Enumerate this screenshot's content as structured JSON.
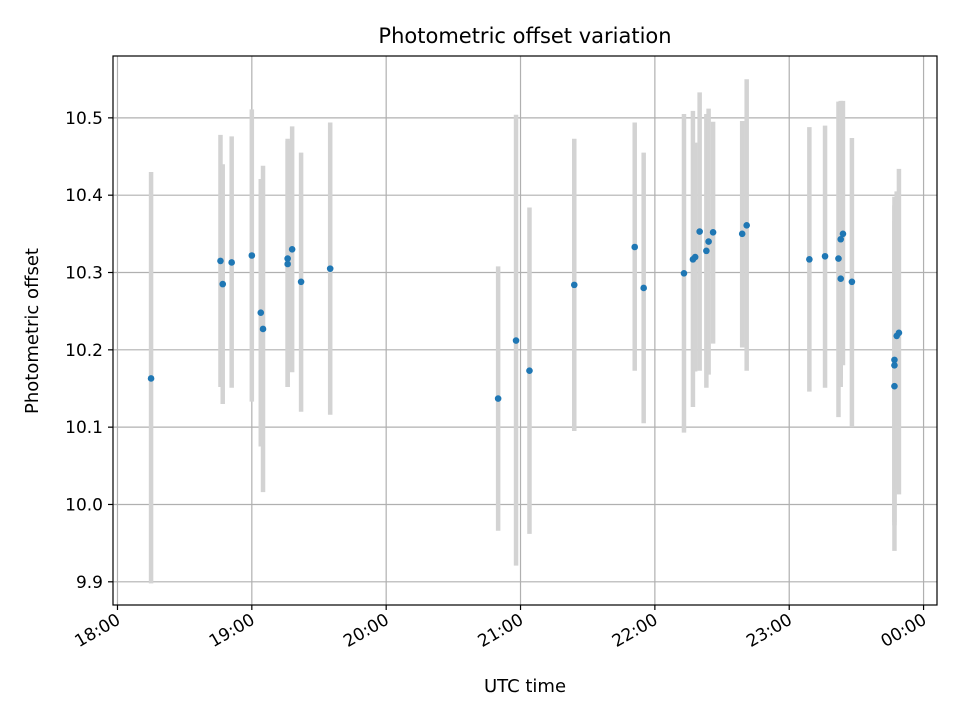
{
  "chart_data": {
    "type": "scatter",
    "title": "Photometric offset variation",
    "xlabel": "UTC time",
    "ylabel": "Photometric offset",
    "xlim": [
      "17:58",
      "00:06"
    ],
    "ylim": [
      9.87,
      10.58
    ],
    "x_ticks": [
      "18:00",
      "19:00",
      "20:00",
      "21:00",
      "22:00",
      "23:00",
      "00:00"
    ],
    "y_ticks": [
      9.9,
      10.0,
      10.1,
      10.2,
      10.3,
      10.4,
      10.5
    ],
    "grid": true,
    "marker_color": "#1f77b4",
    "errorbar_color": "#d3d3d3",
    "points": [
      {
        "t": "18:15",
        "y": 10.163,
        "lo": 9.898,
        "hi": 10.43
      },
      {
        "t": "18:46",
        "y": 10.315,
        "lo": 10.152,
        "hi": 10.478
      },
      {
        "t": "18:47",
        "y": 10.285,
        "lo": 10.13,
        "hi": 10.44
      },
      {
        "t": "18:51",
        "y": 10.313,
        "lo": 10.151,
        "hi": 10.476
      },
      {
        "t": "19:00",
        "y": 10.322,
        "lo": 10.133,
        "hi": 10.511
      },
      {
        "t": "19:04",
        "y": 10.248,
        "lo": 10.075,
        "hi": 10.421
      },
      {
        "t": "19:05",
        "y": 10.227,
        "lo": 10.016,
        "hi": 10.438
      },
      {
        "t": "19:16",
        "y": 10.318,
        "lo": 10.152,
        "hi": 10.473
      },
      {
        "t": "19:16",
        "y": 10.311,
        "lo": 10.152,
        "hi": 10.47
      },
      {
        "t": "19:18",
        "y": 10.33,
        "lo": 10.171,
        "hi": 10.489
      },
      {
        "t": "19:22",
        "y": 10.288,
        "lo": 10.12,
        "hi": 10.455
      },
      {
        "t": "19:35",
        "y": 10.305,
        "lo": 10.116,
        "hi": 10.494
      },
      {
        "t": "20:50",
        "y": 10.137,
        "lo": 9.966,
        "hi": 10.308
      },
      {
        "t": "20:58",
        "y": 10.212,
        "lo": 9.921,
        "hi": 10.504
      },
      {
        "t": "21:04",
        "y": 10.173,
        "lo": 9.962,
        "hi": 10.384
      },
      {
        "t": "21:24",
        "y": 10.284,
        "lo": 10.095,
        "hi": 10.473
      },
      {
        "t": "21:51",
        "y": 10.333,
        "lo": 10.173,
        "hi": 10.494
      },
      {
        "t": "21:55",
        "y": 10.28,
        "lo": 10.105,
        "hi": 10.455
      },
      {
        "t": "22:13",
        "y": 10.299,
        "lo": 10.093,
        "hi": 10.505
      },
      {
        "t": "22:17",
        "y": 10.317,
        "lo": 10.126,
        "hi": 10.509
      },
      {
        "t": "22:18",
        "y": 10.32,
        "lo": 10.172,
        "hi": 10.468
      },
      {
        "t": "22:20",
        "y": 10.353,
        "lo": 10.173,
        "hi": 10.533
      },
      {
        "t": "22:23",
        "y": 10.328,
        "lo": 10.151,
        "hi": 10.505
      },
      {
        "t": "22:24",
        "y": 10.34,
        "lo": 10.168,
        "hi": 10.512
      },
      {
        "t": "22:26",
        "y": 10.352,
        "lo": 10.208,
        "hi": 10.495
      },
      {
        "t": "22:39",
        "y": 10.35,
        "lo": 10.203,
        "hi": 10.496
      },
      {
        "t": "22:41",
        "y": 10.361,
        "lo": 10.173,
        "hi": 10.55
      },
      {
        "t": "23:09",
        "y": 10.317,
        "lo": 10.146,
        "hi": 10.488
      },
      {
        "t": "23:16",
        "y": 10.321,
        "lo": 10.151,
        "hi": 10.49
      },
      {
        "t": "23:22",
        "y": 10.318,
        "lo": 10.113,
        "hi": 10.521
      },
      {
        "t": "23:23",
        "y": 10.343,
        "lo": 10.163,
        "hi": 10.522
      },
      {
        "t": "23:23",
        "y": 10.292,
        "lo": 10.152,
        "hi": 10.432
      },
      {
        "t": "23:24",
        "y": 10.35,
        "lo": 10.18,
        "hi": 10.522
      },
      {
        "t": "23:28",
        "y": 10.288,
        "lo": 10.1,
        "hi": 10.474
      },
      {
        "t": "23:47",
        "y": 10.187,
        "lo": 9.977,
        "hi": 10.398
      },
      {
        "t": "23:47",
        "y": 10.18,
        "lo": 9.973,
        "hi": 10.387
      },
      {
        "t": "23:47",
        "y": 10.153,
        "lo": 9.94,
        "hi": 10.367
      },
      {
        "t": "23:48",
        "y": 10.218,
        "lo": 10.02,
        "hi": 10.405
      },
      {
        "t": "23:49",
        "y": 10.222,
        "lo": 10.013,
        "hi": 10.434
      }
    ]
  }
}
